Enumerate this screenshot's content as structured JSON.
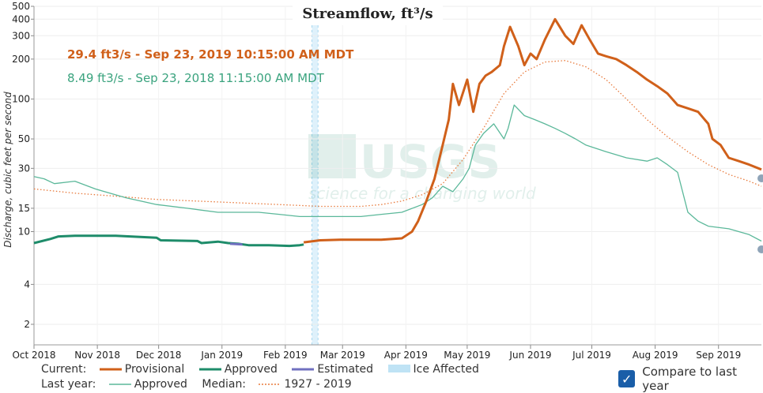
{
  "chart_data": {
    "type": "line",
    "title": "Streamflow, ft³/s",
    "ylabel": "Discharge, cubic feet per second",
    "yscale": "log",
    "ylim": [
      1.4,
      500
    ],
    "yticks": [
      2,
      4,
      10,
      15,
      30,
      50,
      100,
      200,
      300,
      400,
      500
    ],
    "ytick_labels": [
      "2",
      "4",
      "10",
      "15",
      "30",
      "50",
      "100",
      "200",
      "300",
      "400",
      "500"
    ],
    "xlim": [
      0,
      356
    ],
    "xticks": [
      0,
      31,
      61,
      92,
      123,
      151,
      182,
      212,
      243,
      273,
      304,
      335
    ],
    "xtick_labels": [
      "Oct 2018",
      "Nov 2018",
      "Dec 2018",
      "Jan 2019",
      "Feb 2019",
      "Mar 2019",
      "Apr 2019",
      "May 2019",
      "Jun 2019",
      "Jul 2019",
      "Aug 2019",
      "Sep 2019"
    ],
    "annotation_current": "29.4 ft3/s - Sep 23, 2019 10:15:00 AM MDT",
    "annotation_last_year": "8.49 ft3/s - Sep 23, 2018 11:15:00 AM MDT",
    "ice_affected_range": [
      136,
      139
    ],
    "series": [
      {
        "name": "Current Approved",
        "color": "#1e8c6a",
        "style": "solid-thick",
        "x": [
          0,
          8,
          12,
          20,
          40,
          60,
          62,
          80,
          82,
          90,
          95,
          100,
          105,
          115,
          125,
          130,
          132
        ],
        "y": [
          8.2,
          8.8,
          9.2,
          9.3,
          9.3,
          9.0,
          8.6,
          8.5,
          8.2,
          8.4,
          8.2,
          8.1,
          7.9,
          7.9,
          7.8,
          7.9,
          8.0
        ]
      },
      {
        "name": "Current Estimated",
        "color": "#7070c0",
        "style": "solid-thick",
        "x": [
          96,
          102
        ],
        "y": [
          8.1,
          8.0
        ]
      },
      {
        "name": "Current Provisional",
        "color": "#d0601a",
        "style": "solid-thick",
        "x": [
          132,
          140,
          150,
          170,
          180,
          185,
          188,
          192,
          196,
          200,
          203,
          205,
          208,
          212,
          215,
          218,
          221,
          224,
          228,
          230,
          233,
          237,
          240,
          243,
          246,
          250,
          255,
          260,
          264,
          268,
          272,
          276,
          280,
          285,
          290,
          295,
          300,
          305,
          310,
          315,
          320,
          325,
          330,
          332,
          336,
          340,
          345,
          350,
          356
        ],
        "y": [
          8.3,
          8.6,
          8.7,
          8.7,
          8.9,
          10,
          12,
          17,
          25,
          45,
          70,
          130,
          90,
          140,
          80,
          130,
          150,
          160,
          180,
          250,
          350,
          250,
          180,
          220,
          200,
          280,
          400,
          300,
          260,
          360,
          280,
          220,
          210,
          200,
          180,
          160,
          140,
          125,
          110,
          90,
          85,
          80,
          65,
          50,
          45,
          36,
          34,
          32,
          29.4
        ]
      },
      {
        "name": "Last year Approved",
        "color": "#5bb89a",
        "style": "solid-thin",
        "x": [
          0,
          5,
          10,
          20,
          30,
          45,
          60,
          75,
          90,
          100,
          110,
          120,
          130,
          140,
          150,
          160,
          170,
          180,
          190,
          195,
          200,
          205,
          210,
          213,
          216,
          220,
          225,
          230,
          232,
          235,
          240,
          245,
          250,
          255,
          260,
          265,
          270,
          280,
          290,
          300,
          305,
          310,
          315,
          320,
          325,
          330,
          340,
          350,
          356
        ],
        "y": [
          26,
          25,
          23,
          24,
          21,
          18,
          16,
          15,
          14,
          14,
          14,
          13.5,
          13,
          13,
          13,
          13,
          13.5,
          14,
          16,
          18,
          22,
          20,
          25,
          30,
          45,
          55,
          65,
          50,
          60,
          90,
          75,
          70,
          65,
          60,
          55,
          50,
          45,
          40,
          36,
          34,
          36,
          32,
          28,
          14,
          12,
          11,
          10.5,
          9.5,
          8.49
        ]
      },
      {
        "name": "Median 1927 - 2019",
        "color": "#e87a3c",
        "style": "dotted",
        "x": [
          0,
          20,
          40,
          60,
          80,
          100,
          120,
          140,
          160,
          170,
          180,
          190,
          200,
          210,
          220,
          230,
          240,
          250,
          260,
          270,
          280,
          290,
          300,
          310,
          320,
          330,
          340,
          350,
          356
        ],
        "y": [
          21,
          19.5,
          18.5,
          17.5,
          17,
          16.5,
          16,
          15.5,
          15.5,
          16,
          17,
          19,
          23,
          35,
          60,
          110,
          160,
          190,
          195,
          175,
          140,
          100,
          70,
          52,
          40,
          32,
          27,
          24,
          22
        ]
      }
    ]
  },
  "legend": {
    "current_label": "Current:",
    "provisional_label": "Provisional",
    "approved_label": "Approved",
    "estimated_label": "Estimated",
    "ice_label": "Ice Affected",
    "last_year_label": "Last year:",
    "last_year_approved_label": "Approved",
    "median_label": "Median:",
    "median_range_label": "1927 - 2019",
    "colors": {
      "provisional": "#d0601a",
      "approved": "#1e8c6a",
      "estimated": "#7070c0",
      "ice": "#bfe3f5",
      "last_year": "#5bb89a",
      "median": "#e87a3c"
    }
  },
  "compare": {
    "checked": true,
    "label": "Compare to last year"
  },
  "watermark": {
    "brand": "USGS",
    "tagline": "science for a changing world"
  }
}
